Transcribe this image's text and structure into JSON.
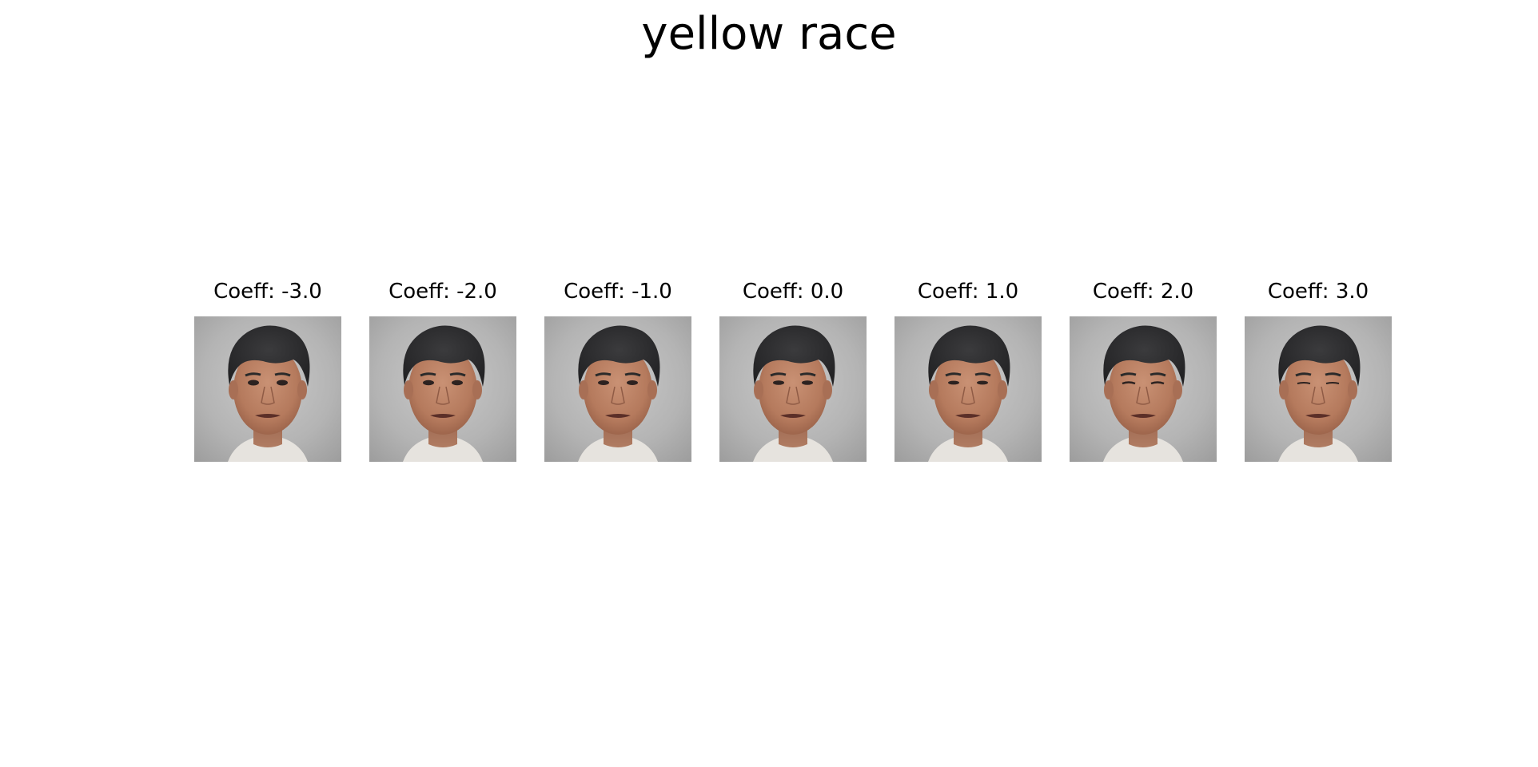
{
  "figure": {
    "title": "yellow race"
  },
  "panels": [
    {
      "caption": "Coeff: -3.0",
      "coeff": -3.0
    },
    {
      "caption": "Coeff: -2.0",
      "coeff": -2.0
    },
    {
      "caption": "Coeff: -1.0",
      "coeff": -1.0
    },
    {
      "caption": "Coeff: 0.0",
      "coeff": 0.0
    },
    {
      "caption": "Coeff: 1.0",
      "coeff": 1.0
    },
    {
      "caption": "Coeff: 2.0",
      "coeff": 2.0
    },
    {
      "caption": "Coeff: 3.0",
      "coeff": 3.0
    }
  ],
  "colors": {
    "background": "#ffffff",
    "photo_background": "#b9b9b9",
    "hair": "#2f2f31",
    "skin": "#bf8466",
    "shirt": "#e6e3de"
  }
}
